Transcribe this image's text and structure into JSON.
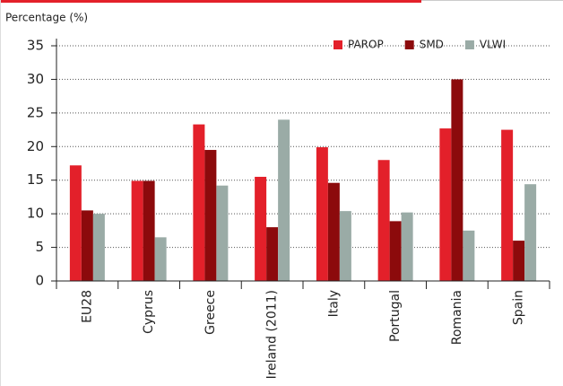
{
  "chart_data": {
    "type": "bar",
    "ylabel": "Percentage (%)",
    "categories": [
      "EU28",
      "Cyprus",
      "Greece",
      "Ireland (2011)",
      "Italy",
      "Portugal",
      "Romania",
      "Spain"
    ],
    "series": [
      {
        "name": "PAROP",
        "color": "#e3202a",
        "values": [
          17.2,
          14.9,
          23.3,
          15.5,
          19.9,
          18.0,
          22.7,
          22.5
        ]
      },
      {
        "name": "SMD",
        "color": "#8c0a0c",
        "values": [
          10.5,
          14.9,
          19.5,
          8.0,
          14.6,
          8.9,
          30.0,
          6.0
        ]
      },
      {
        "name": "VLWI",
        "color": "#9aaba6",
        "values": [
          10.0,
          6.5,
          14.2,
          24.0,
          10.4,
          10.2,
          7.5,
          14.4
        ]
      }
    ],
    "ylim": [
      0,
      35
    ],
    "yticks": [
      0,
      5,
      10,
      15,
      20,
      25,
      30,
      35
    ],
    "grid": true,
    "legend": "top-right"
  }
}
